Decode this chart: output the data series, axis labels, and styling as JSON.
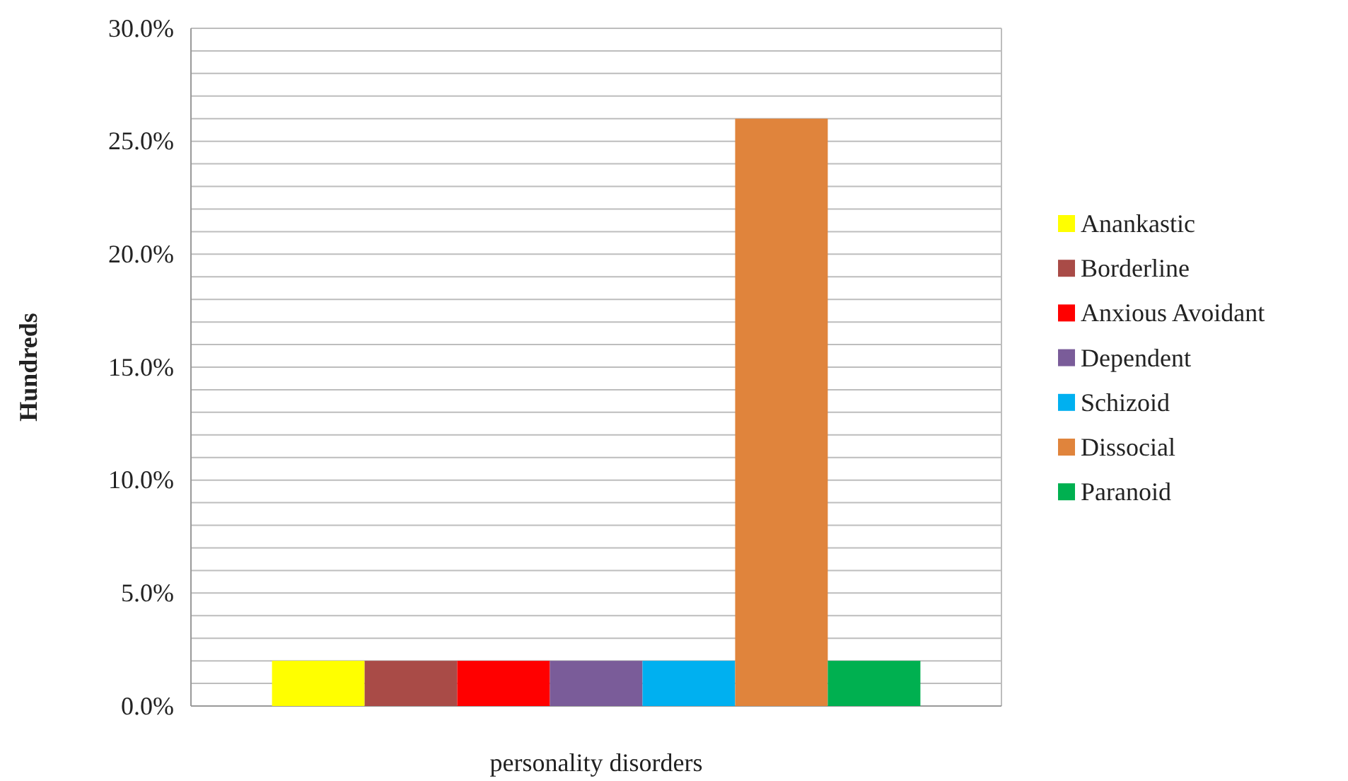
{
  "chart_data": {
    "type": "bar",
    "xlabel": "personality disorders",
    "ylabel": "Hundreds",
    "categories": [
      null
    ],
    "series": [
      {
        "name": "Anankastic",
        "color": "#ffff00",
        "values": [
          2
        ]
      },
      {
        "name": "Borderline",
        "color": "#a94b47",
        "values": [
          2
        ]
      },
      {
        "name": "Anxious Avoidant",
        "color": "#ff0000",
        "values": [
          2
        ]
      },
      {
        "name": "Dependent",
        "color": "#7a5c99",
        "values": [
          2
        ]
      },
      {
        "name": "Schizoid",
        "color": "#00b0f0",
        "values": [
          2
        ]
      },
      {
        "name": "Dissocial",
        "color": "#e0843c",
        "values": [
          26
        ]
      },
      {
        "name": "Paranoid",
        "color": "#00b050",
        "values": [
          2
        ]
      }
    ],
    "ylim": [
      0,
      30
    ],
    "yticks": [
      {
        "value": 0,
        "label": "0.0%"
      },
      {
        "value": 1,
        "label": null
      },
      {
        "value": 2,
        "label": null
      },
      {
        "value": 3,
        "label": null
      },
      {
        "value": 4,
        "label": null
      },
      {
        "value": 5,
        "label": "5.0%"
      },
      {
        "value": 6,
        "label": null
      },
      {
        "value": 7,
        "label": null
      },
      {
        "value": 8,
        "label": null
      },
      {
        "value": 9,
        "label": null
      },
      {
        "value": 10,
        "label": "10.0%"
      },
      {
        "value": 11,
        "label": null
      },
      {
        "value": 12,
        "label": null
      },
      {
        "value": 13,
        "label": null
      },
      {
        "value": 14,
        "label": null
      },
      {
        "value": 15,
        "label": "15.0%"
      },
      {
        "value": 16,
        "label": null
      },
      {
        "value": 17,
        "label": null
      },
      {
        "value": 18,
        "label": null
      },
      {
        "value": 19,
        "label": null
      },
      {
        "value": 20,
        "label": "20.0%"
      },
      {
        "value": 21,
        "label": null
      },
      {
        "value": 22,
        "label": null
      },
      {
        "value": 23,
        "label": null
      },
      {
        "value": 24,
        "label": null
      },
      {
        "value": 25,
        "label": "25.0%"
      },
      {
        "value": 26,
        "label": null
      },
      {
        "value": 27,
        "label": null
      },
      {
        "value": 28,
        "label": null
      },
      {
        "value": 29,
        "label": null
      },
      {
        "value": 30,
        "label": "30.0%"
      }
    ],
    "grid": "y",
    "legend": "right"
  }
}
